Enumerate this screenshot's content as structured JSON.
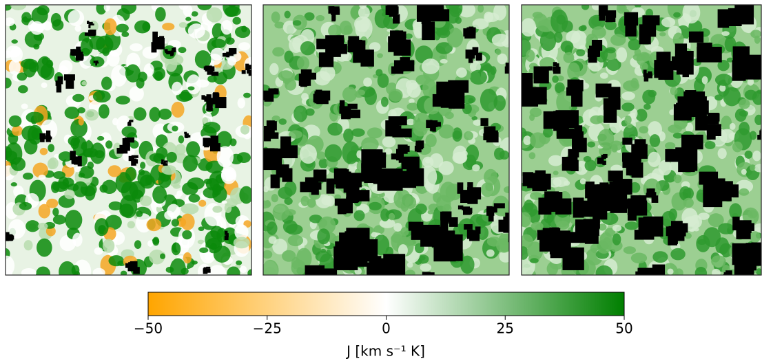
{
  "chart_data": {
    "type": "colorbar",
    "label": "J [km s⁻¹ K]",
    "lim": [
      -50,
      50
    ],
    "ticks": [
      {
        "value": -50,
        "label": "−50"
      },
      {
        "value": -25,
        "label": "−25"
      },
      0,
      25,
      50
    ],
    "colors": [
      "#ffa500",
      "#ffffff",
      "#007f00"
    ]
  }
}
